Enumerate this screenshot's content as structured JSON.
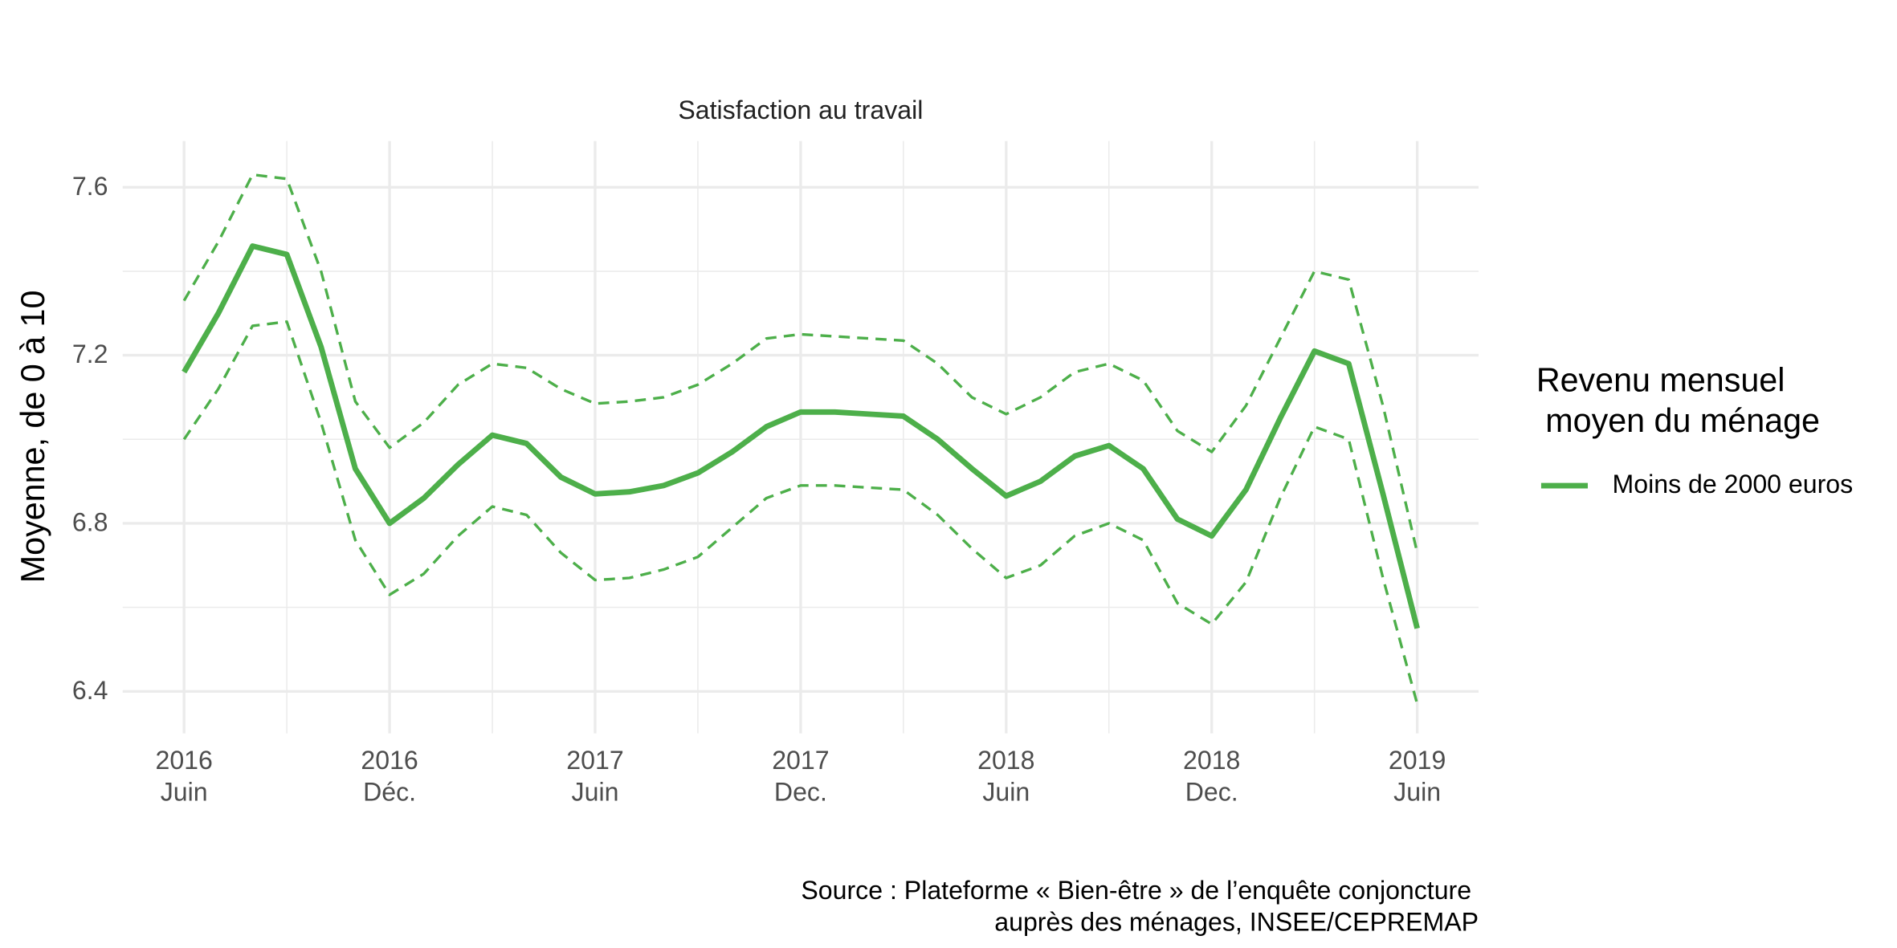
{
  "chart_data": {
    "type": "line",
    "title": "Satisfaction au travail",
    "y_label": "Moyenne, de 0 à 10",
    "legend_title": "Revenu mensuel\n moyen du ménage",
    "caption": "Source : Plateforme « Bien-être » de l’enquête conjoncture \nauprès des ménages, INSEE/CEPREMAP",
    "x": [
      "2016-06",
      "2016-07",
      "2016-08",
      "2016-09",
      "2016-10",
      "2016-11",
      "2016-12",
      "2017-01",
      "2017-02",
      "2017-03",
      "2017-04",
      "2017-05",
      "2017-06",
      "2017-07",
      "2017-08",
      "2017-09",
      "2017-10",
      "2017-11",
      "2017-12",
      "2018-01",
      "2018-02",
      "2018-03",
      "2018-04",
      "2018-05",
      "2018-06",
      "2018-07",
      "2018-08",
      "2018-09",
      "2018-10",
      "2018-11",
      "2018-12",
      "2019-01",
      "2019-02",
      "2019-03",
      "2019-04",
      "2019-05",
      "2019-06"
    ],
    "series": [
      {
        "name": "Moins de 2000 euros",
        "color": "#4daf4a",
        "values": [
          7.16,
          7.3,
          7.46,
          7.44,
          7.22,
          6.93,
          6.8,
          6.86,
          6.94,
          7.01,
          6.99,
          6.91,
          6.87,
          6.875,
          6.89,
          6.92,
          6.97,
          7.03,
          7.065,
          7.065,
          7.06,
          7.055,
          7.0,
          6.93,
          6.865,
          6.9,
          6.96,
          6.985,
          6.93,
          6.81,
          6.77,
          6.88,
          7.05,
          7.21,
          7.18,
          6.87,
          6.55
        ]
      },
      {
        "color": "#4daf4a",
        "dashed": true,
        "values": [
          7.33,
          7.47,
          7.63,
          7.62,
          7.4,
          7.09,
          6.98,
          7.04,
          7.13,
          7.18,
          7.17,
          7.12,
          7.085,
          7.09,
          7.1,
          7.13,
          7.18,
          7.24,
          7.25,
          7.245,
          7.24,
          7.235,
          7.18,
          7.1,
          7.06,
          7.1,
          7.16,
          7.18,
          7.14,
          7.02,
          6.97,
          7.08,
          7.24,
          7.4,
          7.38,
          7.08,
          6.73
        ]
      },
      {
        "color": "#4daf4a",
        "dashed": true,
        "values": [
          7.0,
          7.12,
          7.27,
          7.28,
          7.04,
          6.76,
          6.63,
          6.68,
          6.77,
          6.84,
          6.82,
          6.73,
          6.665,
          6.67,
          6.69,
          6.72,
          6.79,
          6.86,
          6.89,
          6.89,
          6.885,
          6.88,
          6.82,
          6.74,
          6.67,
          6.7,
          6.77,
          6.8,
          6.76,
          6.61,
          6.56,
          6.66,
          6.86,
          7.03,
          7.0,
          6.67,
          6.37
        ]
      }
    ],
    "xlim": [
      "2016-06",
      "2019-06"
    ],
    "xticks": [
      {
        "value": "2016-06",
        "label": "2016\nJuin"
      },
      {
        "value": "2016-12",
        "label": "2016\nDéc."
      },
      {
        "value": "2017-06",
        "label": "2017\nJuin"
      },
      {
        "value": "2017-12",
        "label": "2017\nDec."
      },
      {
        "value": "2018-06",
        "label": "2018\nJuin"
      },
      {
        "value": "2018-12",
        "label": "2018\nDec."
      },
      {
        "value": "2019-06",
        "label": "2019\nJuin"
      }
    ],
    "ylim": [
      6.3,
      7.71
    ],
    "yticks": [
      6.4,
      6.8,
      7.2,
      7.6
    ],
    "grid": true
  }
}
